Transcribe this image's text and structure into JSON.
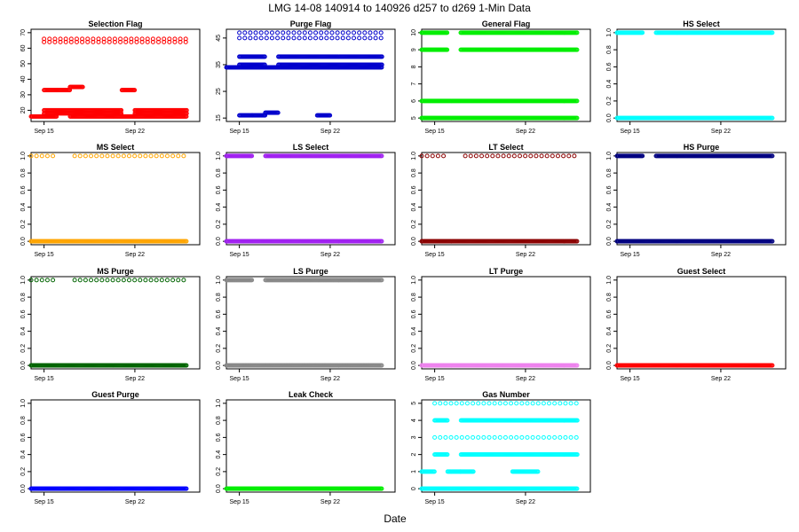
{
  "title": "LMG   14-08    140914 to 140926    d257 to d269   1-Min Data",
  "xlabel": "Date",
  "chart_data": [
    {
      "type": "scatter",
      "title": "Selection Flag",
      "color": "#ff0000",
      "xlim": [
        "2014-09-14",
        "2014-09-27"
      ],
      "ylim": [
        15,
        70
      ],
      "xticks": [
        {
          "value": "2014-09-15",
          "label": "Sep 15"
        },
        {
          "value": "2014-09-22",
          "label": "Sep 22"
        }
      ],
      "yticks": [
        20,
        30,
        40,
        50,
        60,
        70
      ],
      "series": [
        {
          "x_range": [
            "2014-09-14",
            "2014-09-26"
          ],
          "y": 16,
          "density": "dense",
          "gaps": [
            [
              "2014-09-16",
              "2014-09-17"
            ]
          ]
        },
        {
          "x_range": [
            "2014-09-15",
            "2014-09-26"
          ],
          "y": 20,
          "density": "dense",
          "gaps": [
            [
              "2014-09-21",
              "2014-09-22"
            ]
          ]
        },
        {
          "x_range": [
            "2014-09-15",
            "2014-09-26"
          ],
          "y": 18,
          "density": "dense",
          "gaps": [
            [
              "2014-09-21",
              "2014-09-22"
            ]
          ]
        },
        {
          "x_range": [
            "2014-09-15",
            "2014-09-26"
          ],
          "y": 64,
          "density": "sparse"
        },
        {
          "x_range": [
            "2014-09-15",
            "2014-09-26"
          ],
          "y": 66,
          "density": "sparse"
        },
        {
          "x_range": [
            "2014-09-15",
            "2014-09-16"
          ],
          "y": 33,
          "density": "dense"
        },
        {
          "x_range": [
            "2014-09-16",
            "2014-09-17"
          ],
          "y": 33,
          "density": "dense"
        },
        {
          "x_range": [
            "2014-09-17",
            "2014-09-18"
          ],
          "y": 35,
          "density": "dense"
        },
        {
          "x_range": [
            "2014-09-21",
            "2014-09-22"
          ],
          "y": 33,
          "density": "dense"
        }
      ]
    },
    {
      "type": "scatter",
      "title": "Purge Flag",
      "color": "#0000cc",
      "xlim": [
        "2014-09-14",
        "2014-09-27"
      ],
      "ylim": [
        15,
        47
      ],
      "xticks": [
        {
          "value": "2014-09-15",
          "label": "Sep 15"
        },
        {
          "value": "2014-09-22",
          "label": "Sep 22"
        }
      ],
      "yticks": [
        15,
        25,
        35,
        45
      ],
      "series": [
        {
          "x_range": [
            "2014-09-14",
            "2014-09-26"
          ],
          "y": 34,
          "density": "dense"
        },
        {
          "x_range": [
            "2014-09-15",
            "2014-09-26"
          ],
          "y": 35,
          "density": "dense",
          "gaps": [
            [
              "2014-09-17",
              "2014-09-18"
            ]
          ]
        },
        {
          "x_range": [
            "2014-09-15",
            "2014-09-26"
          ],
          "y": 38,
          "density": "dense",
          "gaps": [
            [
              "2014-09-17",
              "2014-09-18"
            ]
          ]
        },
        {
          "x_range": [
            "2014-09-15",
            "2014-09-26"
          ],
          "y": 45,
          "density": "sparse"
        },
        {
          "x_range": [
            "2014-09-15",
            "2014-09-26"
          ],
          "y": 47,
          "density": "sparse"
        },
        {
          "x_range": [
            "2014-09-15",
            "2014-09-16"
          ],
          "y": 16,
          "density": "dense"
        },
        {
          "x_range": [
            "2014-09-16",
            "2014-09-17"
          ],
          "y": 16,
          "density": "dense"
        },
        {
          "x_range": [
            "2014-09-17",
            "2014-09-18"
          ],
          "y": 17,
          "density": "dense"
        },
        {
          "x_range": [
            "2014-09-21",
            "2014-09-22"
          ],
          "y": 16,
          "density": "dense"
        }
      ]
    },
    {
      "type": "scatter",
      "title": "General Flag",
      "color": "#00ee00",
      "xlim": [
        "2014-09-14",
        "2014-09-27"
      ],
      "ylim": [
        5,
        10
      ],
      "xticks": [
        {
          "value": "2014-09-15",
          "label": "Sep 15"
        },
        {
          "value": "2014-09-22",
          "label": "Sep 22"
        }
      ],
      "yticks": [
        5,
        6,
        7,
        8,
        9,
        10
      ],
      "series": [
        {
          "x_range": [
            "2014-09-14",
            "2014-09-26"
          ],
          "y": 5,
          "density": "dense"
        },
        {
          "x_range": [
            "2014-09-14",
            "2014-09-26"
          ],
          "y": 6,
          "density": "dense"
        },
        {
          "x_range": [
            "2014-09-14",
            "2014-09-26"
          ],
          "y": 9,
          "density": "dense",
          "gaps": [
            [
              "2014-09-16",
              "2014-09-17"
            ]
          ]
        },
        {
          "x_range": [
            "2014-09-14",
            "2014-09-26"
          ],
          "y": 10,
          "density": "dense",
          "gaps": [
            [
              "2014-09-16",
              "2014-09-17"
            ]
          ]
        }
      ]
    },
    {
      "type": "scatter",
      "title": "HS Select",
      "color": "#00ffff",
      "xlim": [
        "2014-09-14",
        "2014-09-27"
      ],
      "ylim": [
        0,
        1
      ],
      "xticks": [
        {
          "value": "2014-09-15",
          "label": "Sep 15"
        },
        {
          "value": "2014-09-22",
          "label": "Sep 22"
        }
      ],
      "yticks": [
        0.0,
        0.2,
        0.4,
        0.6,
        0.8,
        1.0
      ],
      "series": [
        {
          "x_range": [
            "2014-09-14",
            "2014-09-26"
          ],
          "y": 0,
          "density": "dense"
        },
        {
          "x_range": [
            "2014-09-14",
            "2014-09-26"
          ],
          "y": 1,
          "density": "dense",
          "gaps": [
            [
              "2014-09-16",
              "2014-09-17"
            ]
          ]
        }
      ]
    },
    {
      "type": "scatter",
      "title": "MS Select",
      "color": "#ffa500",
      "xlim": [
        "2014-09-14",
        "2014-09-27"
      ],
      "ylim": [
        0,
        1
      ],
      "xticks": [
        {
          "value": "2014-09-15",
          "label": "Sep 15"
        },
        {
          "value": "2014-09-22",
          "label": "Sep 22"
        }
      ],
      "yticks": [
        0.0,
        0.2,
        0.4,
        0.6,
        0.8,
        1.0
      ],
      "series": [
        {
          "x_range": [
            "2014-09-14",
            "2014-09-26"
          ],
          "y": 0,
          "density": "dense"
        },
        {
          "x_range": [
            "2014-09-14",
            "2014-09-26"
          ],
          "y": 1,
          "density": "sparse",
          "gaps": [
            [
              "2014-09-16",
              "2014-09-17"
            ]
          ]
        }
      ]
    },
    {
      "type": "scatter",
      "title": "LS Select",
      "color": "#a020f0",
      "xlim": [
        "2014-09-14",
        "2014-09-27"
      ],
      "ylim": [
        0,
        1
      ],
      "xticks": [
        {
          "value": "2014-09-15",
          "label": "Sep 15"
        },
        {
          "value": "2014-09-22",
          "label": "Sep 22"
        }
      ],
      "yticks": [
        0.0,
        0.2,
        0.4,
        0.6,
        0.8,
        1.0
      ],
      "series": [
        {
          "x_range": [
            "2014-09-14",
            "2014-09-26"
          ],
          "y": 0,
          "density": "dense"
        },
        {
          "x_range": [
            "2014-09-14",
            "2014-09-26"
          ],
          "y": 1,
          "density": "dense",
          "gaps": [
            [
              "2014-09-16",
              "2014-09-17"
            ]
          ]
        }
      ]
    },
    {
      "type": "scatter",
      "title": "LT Select",
      "color": "#8b0000",
      "xlim": [
        "2014-09-14",
        "2014-09-27"
      ],
      "ylim": [
        0,
        1
      ],
      "xticks": [
        {
          "value": "2014-09-15",
          "label": "Sep 15"
        },
        {
          "value": "2014-09-22",
          "label": "Sep 22"
        }
      ],
      "yticks": [
        0.0,
        0.2,
        0.4,
        0.6,
        0.8,
        1.0
      ],
      "series": [
        {
          "x_range": [
            "2014-09-14",
            "2014-09-26"
          ],
          "y": 0,
          "density": "dense"
        },
        {
          "x_range": [
            "2014-09-14",
            "2014-09-26"
          ],
          "y": 1,
          "density": "sparse",
          "gaps": [
            [
              "2014-09-16",
              "2014-09-17"
            ]
          ]
        }
      ]
    },
    {
      "type": "scatter",
      "title": "HS Purge",
      "color": "#000080",
      "xlim": [
        "2014-09-14",
        "2014-09-27"
      ],
      "ylim": [
        0,
        1
      ],
      "xticks": [
        {
          "value": "2014-09-15",
          "label": "Sep 15"
        },
        {
          "value": "2014-09-22",
          "label": "Sep 22"
        }
      ],
      "yticks": [
        0.0,
        0.2,
        0.4,
        0.6,
        0.8,
        1.0
      ],
      "series": [
        {
          "x_range": [
            "2014-09-14",
            "2014-09-26"
          ],
          "y": 0,
          "density": "dense"
        },
        {
          "x_range": [
            "2014-09-14",
            "2014-09-26"
          ],
          "y": 1,
          "density": "dense",
          "gaps": [
            [
              "2014-09-16",
              "2014-09-17"
            ]
          ]
        }
      ]
    },
    {
      "type": "scatter",
      "title": "MS Purge",
      "color": "#006400",
      "xlim": [
        "2014-09-14",
        "2014-09-27"
      ],
      "ylim": [
        0,
        1
      ],
      "xticks": [
        {
          "value": "2014-09-15",
          "label": "Sep 15"
        },
        {
          "value": "2014-09-22",
          "label": "Sep 22"
        }
      ],
      "yticks": [
        0.0,
        0.2,
        0.4,
        0.6,
        0.8,
        1.0
      ],
      "series": [
        {
          "x_range": [
            "2014-09-14",
            "2014-09-26"
          ],
          "y": 0,
          "density": "dense"
        },
        {
          "x_range": [
            "2014-09-14",
            "2014-09-26"
          ],
          "y": 1,
          "density": "sparse",
          "gaps": [
            [
              "2014-09-16",
              "2014-09-17"
            ]
          ]
        }
      ]
    },
    {
      "type": "scatter",
      "title": "LS Purge",
      "color": "#888888",
      "xlim": [
        "2014-09-14",
        "2014-09-27"
      ],
      "ylim": [
        0,
        1
      ],
      "xticks": [
        {
          "value": "2014-09-15",
          "label": "Sep 15"
        },
        {
          "value": "2014-09-22",
          "label": "Sep 22"
        }
      ],
      "yticks": [
        0.0,
        0.2,
        0.4,
        0.6,
        0.8,
        1.0
      ],
      "series": [
        {
          "x_range": [
            "2014-09-14",
            "2014-09-26"
          ],
          "y": 0,
          "density": "dense"
        },
        {
          "x_range": [
            "2014-09-14",
            "2014-09-26"
          ],
          "y": 1,
          "density": "dense",
          "gaps": [
            [
              "2014-09-16",
              "2014-09-17"
            ]
          ]
        }
      ]
    },
    {
      "type": "scatter",
      "title": "LT Purge",
      "color": "#ee82ee",
      "xlim": [
        "2014-09-14",
        "2014-09-27"
      ],
      "ylim": [
        0,
        1
      ],
      "xticks": [
        {
          "value": "2014-09-15",
          "label": "Sep 15"
        },
        {
          "value": "2014-09-22",
          "label": "Sep 22"
        }
      ],
      "yticks": [
        0.0,
        0.2,
        0.4,
        0.6,
        0.8,
        1.0
      ],
      "series": [
        {
          "x_range": [
            "2014-09-14",
            "2014-09-26"
          ],
          "y": 0,
          "density": "dense"
        }
      ]
    },
    {
      "type": "scatter",
      "title": "Guest Select",
      "color": "#ff0000",
      "xlim": [
        "2014-09-14",
        "2014-09-27"
      ],
      "ylim": [
        0,
        1
      ],
      "xticks": [
        {
          "value": "2014-09-15",
          "label": "Sep 15"
        },
        {
          "value": "2014-09-22",
          "label": "Sep 22"
        }
      ],
      "yticks": [
        0.0,
        0.2,
        0.4,
        0.6,
        0.8,
        1.0
      ],
      "series": [
        {
          "x_range": [
            "2014-09-14",
            "2014-09-26"
          ],
          "y": 0,
          "density": "dense"
        }
      ]
    },
    {
      "type": "scatter",
      "title": "Guest Purge",
      "color": "#0000ff",
      "xlim": [
        "2014-09-14",
        "2014-09-27"
      ],
      "ylim": [
        0,
        1
      ],
      "xticks": [
        {
          "value": "2014-09-15",
          "label": "Sep 15"
        },
        {
          "value": "2014-09-22",
          "label": "Sep 22"
        }
      ],
      "yticks": [
        0.0,
        0.2,
        0.4,
        0.6,
        0.8,
        1.0
      ],
      "series": [
        {
          "x_range": [
            "2014-09-14",
            "2014-09-26"
          ],
          "y": 0,
          "density": "dense"
        }
      ]
    },
    {
      "type": "scatter",
      "title": "Leak Check",
      "color": "#00ee00",
      "xlim": [
        "2014-09-14",
        "2014-09-27"
      ],
      "ylim": [
        0,
        1
      ],
      "xticks": [
        {
          "value": "2014-09-15",
          "label": "Sep 15"
        },
        {
          "value": "2014-09-22",
          "label": "Sep 22"
        }
      ],
      "yticks": [
        0.0,
        0.2,
        0.4,
        0.6,
        0.8,
        1.0
      ],
      "series": [
        {
          "x_range": [
            "2014-09-14",
            "2014-09-26"
          ],
          "y": 0,
          "density": "dense"
        }
      ]
    },
    {
      "type": "scatter",
      "title": "Gas Number",
      "color": "#00ffff",
      "xlim": [
        "2014-09-14",
        "2014-09-27"
      ],
      "ylim": [
        0,
        5
      ],
      "xticks": [
        {
          "value": "2014-09-15",
          "label": "Sep 15"
        },
        {
          "value": "2014-09-22",
          "label": "Sep 22"
        }
      ],
      "yticks": [
        0,
        1,
        2,
        3,
        4,
        5
      ],
      "series": [
        {
          "x_range": [
            "2014-09-14",
            "2014-09-26"
          ],
          "y": 0,
          "density": "dense"
        },
        {
          "x_range": [
            "2014-09-15",
            "2014-09-26"
          ],
          "y": 2,
          "density": "dense",
          "gaps": [
            [
              "2014-09-16",
              "2014-09-17"
            ]
          ]
        },
        {
          "x_range": [
            "2014-09-15",
            "2014-09-26"
          ],
          "y": 3,
          "density": "sparse"
        },
        {
          "x_range": [
            "2014-09-15",
            "2014-09-26"
          ],
          "y": 4,
          "density": "dense",
          "gaps": [
            [
              "2014-09-16",
              "2014-09-17"
            ]
          ]
        },
        {
          "x_range": [
            "2014-09-15",
            "2014-09-26"
          ],
          "y": 5,
          "density": "sparse"
        },
        {
          "x_range": [
            "2014-09-14",
            "2014-09-15"
          ],
          "y": 1,
          "density": "dense"
        },
        {
          "x_range": [
            "2014-09-16",
            "2014-09-17"
          ],
          "y": 1,
          "density": "dense"
        },
        {
          "x_range": [
            "2014-09-17",
            "2014-09-18"
          ],
          "y": 1,
          "density": "dense"
        },
        {
          "x_range": [
            "2014-09-21",
            "2014-09-23"
          ],
          "y": 1,
          "density": "dense"
        }
      ]
    }
  ]
}
